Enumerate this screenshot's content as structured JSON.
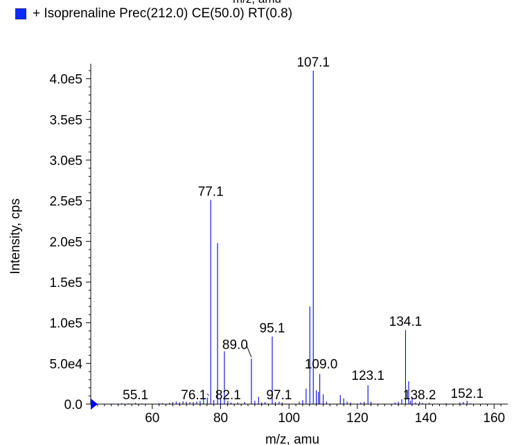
{
  "chart_data": {
    "type": "bar",
    "title": "+ Isoprenaline Prec(212.0) CE(50.0) RT(0.8)",
    "cut_off_label": "m/z, amu",
    "xlabel": "m/z, amu",
    "ylabel": "Intensity, cps",
    "xlim": [
      42,
      164
    ],
    "ylim": [
      0,
      415000
    ],
    "x_ticks": [
      60,
      80,
      100,
      120,
      140,
      160
    ],
    "y_ticks": [
      0,
      50000,
      100000,
      150000,
      200000,
      250000,
      300000,
      350000,
      400000
    ],
    "y_tick_labels": [
      "0.0",
      "5.0e4",
      "1.0e5",
      "1.5e5",
      "2.0e5",
      "2.5e5",
      "3.0e5",
      "3.5e5",
      "4.0e5"
    ],
    "series": [
      {
        "x": [
          51,
          53,
          55.1,
          57,
          62,
          63,
          65,
          66,
          67,
          68,
          69,
          70,
          71,
          72,
          73,
          74,
          75,
          76.1,
          77.1,
          78,
          79.1,
          80,
          81.1,
          82.1,
          83,
          85,
          87,
          89.0,
          90,
          91.1,
          92,
          93,
          95.1,
          96,
          97.1,
          98,
          103,
          104,
          105,
          106.1,
          107.1,
          108,
          108.6,
          109.0,
          110,
          111,
          115,
          116,
          117,
          118,
          121,
          122,
          123.1,
          124,
          131,
          132,
          133,
          134.1,
          135,
          135.5,
          136,
          137,
          138.2,
          139,
          141,
          146,
          150,
          151,
          152.1,
          153
        ],
        "y": [
          1200,
          900,
          1500,
          800,
          1000,
          1200,
          1500,
          2500,
          3000,
          2000,
          3500,
          3000,
          2500,
          2500,
          3000,
          4000,
          6000,
          8000,
          251000,
          5000,
          198000,
          7000,
          65000,
          4000,
          2000,
          2000,
          2500,
          56000,
          4000,
          9000,
          2000,
          2500,
          83000,
          2500,
          3000,
          2000,
          3000,
          5000,
          19000,
          120000,
          410000,
          17000,
          15000,
          37000,
          12000,
          3000,
          11000,
          7000,
          3000,
          2000,
          2000,
          3000,
          23000,
          3000,
          2000,
          3000,
          6000,
          91000,
          28000,
          4000,
          7000,
          2000,
          3000,
          1500,
          1500,
          1000,
          2000,
          2500,
          4000,
          1000
        ]
      }
    ],
    "annotations": [
      {
        "label": "107.1",
        "x": 107.1
      },
      {
        "label": "77.1",
        "x": 77.1
      },
      {
        "label": "134.1",
        "x": 134.1
      },
      {
        "label": "95.1",
        "x": 95.1
      },
      {
        "label": "89.0",
        "x": 89.0
      },
      {
        "label": "109.0",
        "x": 109.0
      },
      {
        "label": "123.1",
        "x": 123.1
      },
      {
        "label": "76.1",
        "x": 76.1
      },
      {
        "label": "82.1",
        "x": 82.1
      },
      {
        "label": "55.1",
        "x": 55.1
      },
      {
        "label": "97.1",
        "x": 97.1
      },
      {
        "label": "138.2",
        "x": 138.2
      },
      {
        "label": "152.1",
        "x": 152.1
      }
    ],
    "colors": {
      "bars": "#0000dd",
      "marker": "#0000ee",
      "legend_swatch": "#0a2cff"
    },
    "grid": false,
    "legend": "top-left"
  }
}
